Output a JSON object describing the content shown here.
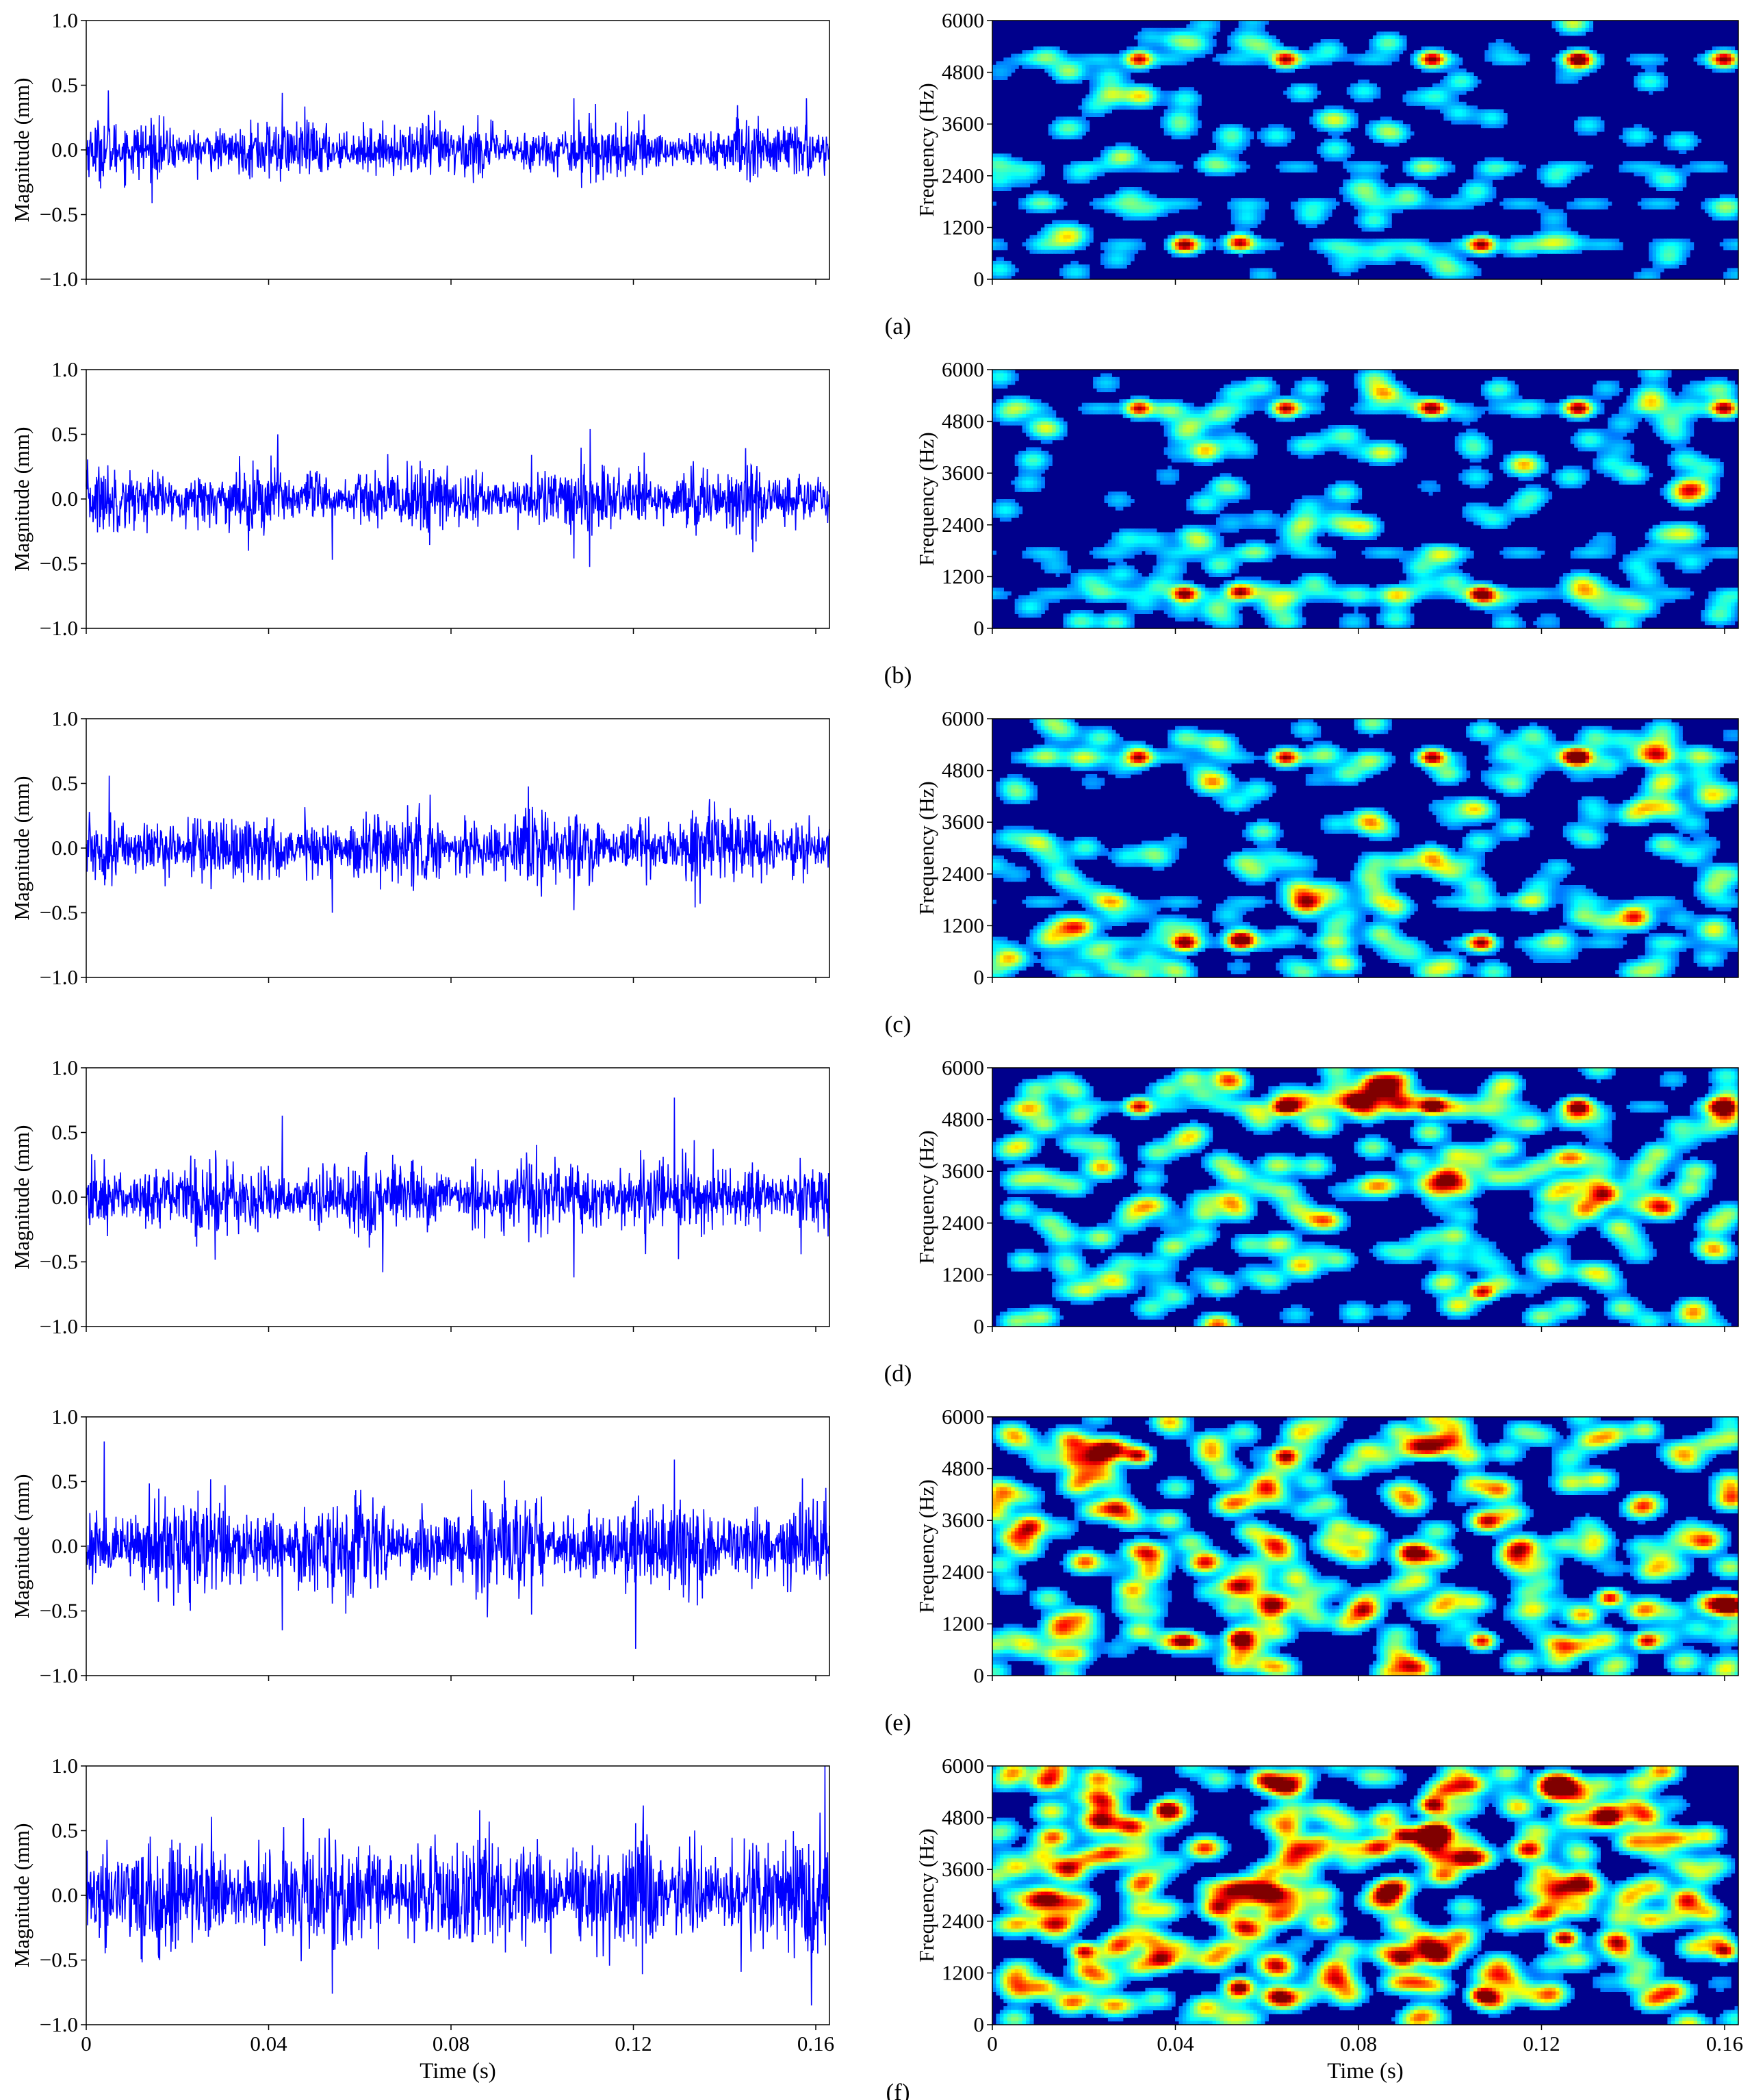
{
  "figure": {
    "x_ticks": [
      "0",
      "0.04",
      "0.08",
      "0.12",
      "0.16"
    ],
    "xlabel": "Time (s)"
  },
  "chart_data": [
    {
      "panel": "(a)",
      "left": {
        "type": "line",
        "ylabel": "Magnitude (mm)",
        "y_ticks": [
          "1.0",
          "0.5",
          "0.0",
          "−0.5",
          "−1.0"
        ],
        "xlim": [
          0,
          0.163
        ],
        "ylim": [
          -1.0,
          1.0
        ],
        "series_color": "#0000ff",
        "noise_amplitude": 0.22,
        "peaks": [
          [
            0.0048,
            0.46
          ],
          [
            0.043,
            0.44
          ],
          [
            0.107,
            -0.45
          ],
          [
            0.107,
            0.4
          ],
          [
            0.158,
            0.4
          ]
        ]
      },
      "right": {
        "type": "heatmap",
        "ylabel": "Frequency (Hz)",
        "y_ticks": [
          "6000",
          "4800",
          "3600",
          "2400",
          "1200",
          "0"
        ],
        "ylim": [
          0,
          6000
        ],
        "hotspots": [
          [
            0.032,
            5100
          ],
          [
            0.064,
            5100
          ],
          [
            0.096,
            5100
          ],
          [
            0.128,
            5100
          ],
          [
            0.16,
            5100
          ],
          [
            0.042,
            800
          ],
          [
            0.054,
            850
          ],
          [
            0.107,
            800
          ]
        ],
        "bands": [
          5100,
          1750,
          800,
          2600
        ],
        "noise_level": 0.15
      }
    },
    {
      "panel": "(b)",
      "left": {
        "type": "line",
        "ylabel": "Magnitude (mm)",
        "y_ticks": [
          "1.0",
          "0.5",
          "0.0",
          "−0.5",
          "−1.0"
        ],
        "xlim": [
          0,
          0.163
        ],
        "ylim": [
          -1.0,
          1.0
        ],
        "series_color": "#0000ff",
        "noise_amplitude": 0.25,
        "peaks": [
          [
            0.042,
            0.5
          ],
          [
            0.054,
            -0.47
          ],
          [
            0.107,
            0.52
          ],
          [
            0.107,
            -0.46
          ]
        ]
      },
      "right": {
        "type": "heatmap",
        "ylabel": "Frequency (Hz)",
        "y_ticks": [
          "6000",
          "4800",
          "3600",
          "2400",
          "1200",
          "0"
        ],
        "ylim": [
          0,
          6000
        ],
        "hotspots": [
          [
            0.032,
            5100
          ],
          [
            0.064,
            5100
          ],
          [
            0.096,
            5100
          ],
          [
            0.128,
            5100
          ],
          [
            0.16,
            5100
          ],
          [
            0.042,
            800
          ],
          [
            0.054,
            850
          ],
          [
            0.107,
            800
          ]
        ],
        "bands": [
          5100,
          1750,
          800
        ],
        "noise_level": 0.3
      }
    },
    {
      "panel": "(c)",
      "left": {
        "type": "line",
        "ylabel": "Magnitude (mm)",
        "y_ticks": [
          "1.0",
          "0.5",
          "0.0",
          "−0.5",
          "−1.0"
        ],
        "xlim": [
          0,
          0.163
        ],
        "ylim": [
          -1.0,
          1.0
        ],
        "series_color": "#0000ff",
        "noise_amplitude": 0.27,
        "peaks": [
          [
            0.005,
            0.56
          ],
          [
            0.054,
            -0.5
          ],
          [
            0.107,
            -0.48
          ]
        ]
      },
      "right": {
        "type": "heatmap",
        "ylabel": "Frequency (Hz)",
        "y_ticks": [
          "6000",
          "4800",
          "3600",
          "2400",
          "1200",
          "0"
        ],
        "ylim": [
          0,
          6000
        ],
        "hotspots": [
          [
            0.032,
            5100
          ],
          [
            0.064,
            5100
          ],
          [
            0.096,
            5100
          ],
          [
            0.128,
            5100
          ],
          [
            0.042,
            800
          ],
          [
            0.054,
            850
          ],
          [
            0.107,
            800
          ]
        ],
        "bands": [
          5100,
          1750,
          800
        ],
        "noise_level": 0.45
      }
    },
    {
      "panel": "(d)",
      "left": {
        "type": "line",
        "ylabel": "Magnitude (mm)",
        "y_ticks": [
          "1.0",
          "0.5",
          "0.0",
          "−0.5",
          "−1.0"
        ],
        "xlim": [
          0,
          0.163
        ],
        "ylim": [
          -1.0,
          1.0
        ],
        "series_color": "#0000ff",
        "noise_amplitude": 0.3,
        "peaks": [
          [
            0.043,
            0.63
          ],
          [
            0.129,
            0.77
          ],
          [
            0.107,
            -0.62
          ],
          [
            0.065,
            -0.58
          ]
        ]
      },
      "right": {
        "type": "heatmap",
        "ylabel": "Frequency (Hz)",
        "y_ticks": [
          "6000",
          "4800",
          "3600",
          "2400",
          "1200",
          "0"
        ],
        "ylim": [
          0,
          6000
        ],
        "hotspots": [
          [
            0.032,
            5100
          ],
          [
            0.064,
            5100
          ],
          [
            0.096,
            5100
          ],
          [
            0.128,
            5100
          ],
          [
            0.16,
            5100
          ],
          [
            0.107,
            800
          ]
        ],
        "bands": [
          5100
        ],
        "noise_level": 0.6
      }
    },
    {
      "panel": "(e)",
      "left": {
        "type": "line",
        "ylabel": "Magnitude (mm)",
        "y_ticks": [
          "1.0",
          "0.5",
          "0.0",
          "−0.5",
          "−1.0"
        ],
        "xlim": [
          0,
          0.163
        ],
        "ylim": [
          -1.0,
          1.0
        ],
        "series_color": "#0000ff",
        "noise_amplitude": 0.36,
        "peaks": [
          [
            0.004,
            0.81
          ],
          [
            0.043,
            -0.65
          ],
          [
            0.129,
            0.67
          ]
        ]
      },
      "right": {
        "type": "heatmap",
        "ylabel": "Frequency (Hz)",
        "y_ticks": [
          "6000",
          "4800",
          "3600",
          "2400",
          "1200",
          "0"
        ],
        "ylim": [
          0,
          6000
        ],
        "hotspots": [
          [
            0.032,
            5100
          ],
          [
            0.064,
            5100
          ],
          [
            0.042,
            800
          ],
          [
            0.054,
            850
          ],
          [
            0.107,
            800
          ],
          [
            0.135,
            1800
          ],
          [
            0.143,
            800
          ]
        ],
        "bands": [],
        "noise_level": 0.8
      }
    },
    {
      "panel": "(f)",
      "left": {
        "type": "line",
        "ylabel": "Magnitude (mm)",
        "y_ticks": [
          "1.0",
          "0.5",
          "0.0",
          "−0.5",
          "−1.0"
        ],
        "xlim": [
          0,
          0.163
        ],
        "ylim": [
          -1.0,
          1.0
        ],
        "series_color": "#0000ff",
        "noise_amplitude": 0.45,
        "peaks": [
          [
            0.162,
            1.0
          ],
          [
            0.159,
            -0.85
          ],
          [
            0.054,
            -0.76
          ]
        ]
      },
      "right": {
        "type": "heatmap",
        "ylabel": "Frequency (Hz)",
        "y_ticks": [
          "6000",
          "4800",
          "3600",
          "2400",
          "1200",
          "0"
        ],
        "ylim": [
          0,
          6000
        ],
        "hotspots": [
          [
            0.096,
            5100
          ],
          [
            0.054,
            850
          ],
          [
            0.02,
            1700
          ],
          [
            0.107,
            700
          ],
          [
            0.16,
            1700
          ],
          [
            0.038,
            5000
          ],
          [
            0.125,
            2000
          ],
          [
            0.09,
            4400
          ]
        ],
        "bands": [],
        "noise_level": 1.0
      }
    }
  ]
}
